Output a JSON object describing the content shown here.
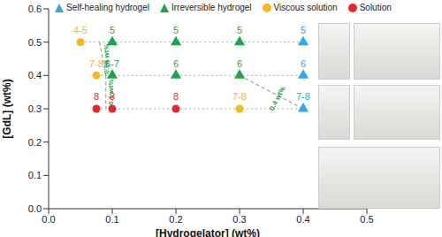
{
  "chart_data": {
    "type": "scatter",
    "xlabel": "[Hydrogelator] (wt%)",
    "ylabel": "[GdL] (wt%)",
    "xlim": [
      0,
      0.5
    ],
    "xticks": [
      {
        "value": 0,
        "label": "0.0"
      },
      0.1,
      0.2,
      0.3,
      0.4,
      0.5
    ],
    "ylim": [
      0,
      0.6
    ],
    "yticks": [
      {
        "value": 0,
        "label": "0.0"
      },
      0.1,
      0.2,
      0.3,
      0.4,
      0.5,
      0.6
    ],
    "legend": "top",
    "series": [
      {
        "name": "Self-healing hydrogel",
        "color": "#2ea8e6",
        "marker": "triangle",
        "x": [
          0.4,
          0.4,
          0.4
        ],
        "values": [
          0.5,
          0.4,
          0.3
        ],
        "labels": [
          "5",
          "6",
          "7-8"
        ]
      },
      {
        "name": "Irreversible hydrogel",
        "color": "#1fa24a",
        "marker": "triangle",
        "x": [
          0.1,
          0.2,
          0.3,
          0.1,
          0.2,
          0.3
        ],
        "values": [
          0.5,
          0.5,
          0.5,
          0.4,
          0.4,
          0.4
        ],
        "labels": [
          "5",
          "5",
          "5",
          "6-7",
          "6",
          "6"
        ]
      },
      {
        "name": "Viscous solution",
        "color": "#f5b820",
        "marker": "circle",
        "x": [
          0.05,
          0.075,
          0.3
        ],
        "values": [
          0.5,
          0.4,
          0.3
        ],
        "labels": [
          "4-5",
          "7-8",
          "7-8"
        ]
      },
      {
        "name": "Solution",
        "color": "#e5262b",
        "marker": "circle",
        "x": [
          0.075,
          0.1,
          0.2
        ],
        "values": [
          0.3,
          0.3,
          0.3
        ],
        "labels": [
          "8",
          "8",
          "8"
        ]
      }
    ],
    "boundary_lines": [
      {
        "x": [
          0.08,
          0.09
        ],
        "y": [
          0.5,
          0.4
        ]
      },
      {
        "x": [
          0.09,
          0.09
        ],
        "y": [
          0.4,
          0.3
        ]
      },
      {
        "x": [
          0.3,
          0.4
        ],
        "y": [
          0.4,
          0.3
        ]
      }
    ],
    "annotations": [
      {
        "text": "0.08 wt%",
        "x": 0.092,
        "y": 0.45,
        "color": "#1fa24a"
      },
      {
        "text": "0.1 wt%",
        "x": 0.098,
        "y": 0.35,
        "color": "#1fa24a"
      },
      {
        "text": "0.4 wt%",
        "x": 0.36,
        "y": 0.33,
        "color": "#1fa24a"
      }
    ]
  }
}
